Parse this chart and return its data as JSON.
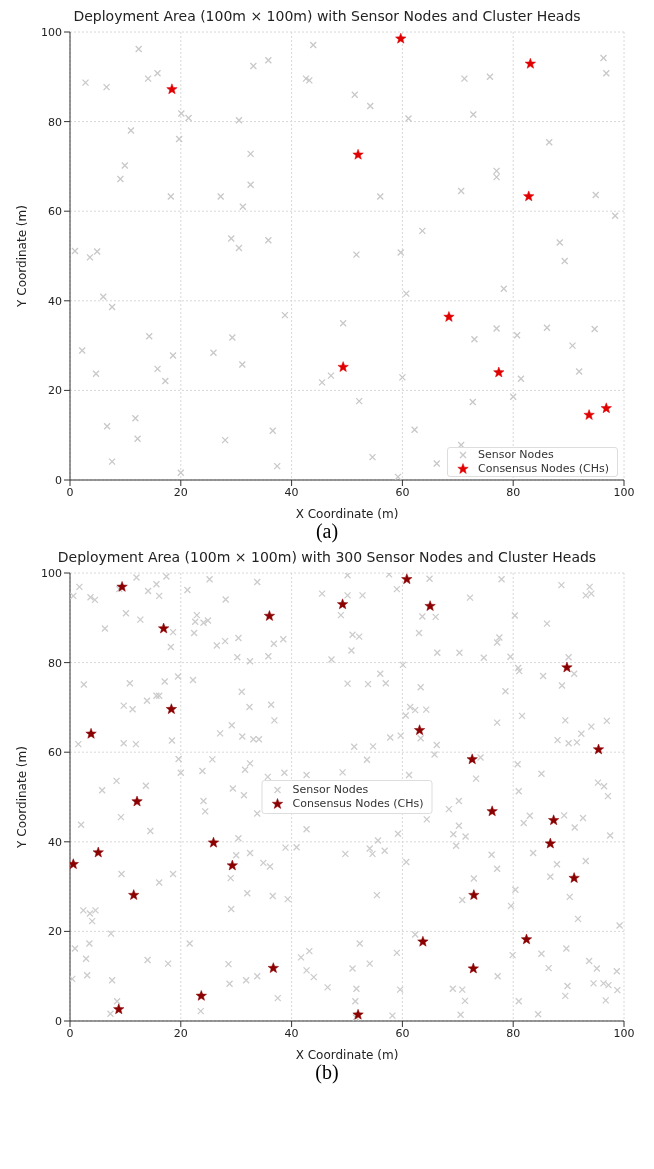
{
  "chart_data": [
    {
      "type": "scatter",
      "title": "Deployment Area (100m × 100m) with Sensor Nodes and Cluster Heads",
      "xlabel": "X Coordinate (m)",
      "ylabel": "Y Coordinate (m)",
      "annotations": [
        "(a)"
      ],
      "xlim": [
        0,
        100
      ],
      "ylim": [
        0,
        100
      ],
      "xticks": [
        0,
        20,
        40,
        60,
        80,
        100
      ],
      "yticks": [
        0,
        20,
        40,
        60,
        80,
        100
      ],
      "grid": true,
      "legend": "bottom right",
      "series": [
        {
          "name": "Sensor Nodes",
          "color": "#c8c8c8",
          "marker": "cross",
          "x": [
            12.4,
            2.8,
            6.6,
            14.1,
            15.8,
            20.1,
            21.4,
            11.0,
            19.7,
            9.9,
            9.1,
            18.2,
            30.5,
            32.6,
            32.6,
            27.2,
            31.2,
            33.1,
            35.8,
            43.9,
            42.6,
            43.2,
            51.4,
            0.9,
            3.6,
            4.9,
            29.1,
            30.5,
            35.8,
            51.7,
            6.0,
            7.6,
            38.8,
            49.3,
            14.3,
            29.3,
            2.2,
            18.6,
            25.9,
            31.1,
            4.7,
            15.8,
            17.2,
            47.1,
            45.5,
            52.2,
            11.8,
            6.7,
            12.2,
            28.0,
            36.6,
            7.6,
            37.4,
            20.0,
            54.2,
            61.1,
            71.2,
            75.8,
            72.8,
            96.3,
            96.8,
            86.5,
            77.0,
            77.0,
            70.6,
            56.0,
            94.9,
            98.4,
            63.6,
            59.7,
            88.4,
            89.3,
            60.7,
            78.3,
            77.0,
            73.0,
            80.7,
            86.1,
            94.7,
            90.7,
            91.9,
            81.4,
            60.0,
            72.7,
            80.0,
            62.2,
            54.6,
            70.6,
            66.2,
            59.2
          ],
          "values": [
            96.2,
            88.7,
            87.7,
            89.6,
            90.8,
            81.8,
            80.8,
            78.0,
            76.1,
            70.2,
            67.2,
            63.3,
            80.3,
            72.8,
            65.9,
            63.3,
            61.0,
            92.4,
            93.7,
            97.1,
            89.6,
            89.2,
            86.0,
            51.1,
            49.7,
            51.0,
            53.9,
            51.8,
            53.5,
            50.3,
            40.9,
            38.6,
            36.8,
            35.0,
            32.1,
            31.8,
            28.9,
            27.8,
            28.4,
            25.8,
            23.7,
            24.8,
            22.1,
            23.3,
            21.8,
            17.6,
            13.8,
            12.0,
            9.2,
            8.9,
            11.0,
            4.1,
            3.1,
            1.6,
            83.5,
            80.7,
            89.6,
            90.0,
            81.6,
            94.2,
            90.8,
            75.4,
            69.0,
            67.6,
            64.5,
            63.3,
            63.6,
            59.0,
            55.6,
            50.8,
            53.0,
            48.9,
            41.6,
            42.7,
            33.8,
            31.4,
            32.3,
            34.0,
            33.7,
            30.0,
            24.2,
            22.6,
            22.9,
            17.4,
            18.6,
            11.2,
            5.1,
            7.8,
            3.7,
            0.7
          ]
        },
        {
          "name": "Consensus Nodes (CHs)",
          "color": "#e00000",
          "marker": "star",
          "x": [
            18.4,
            52.0,
            49.3,
            59.7,
            83.1,
            82.8,
            68.4,
            77.4,
            93.7,
            96.8
          ],
          "values": [
            87.2,
            72.6,
            25.2,
            98.5,
            92.9,
            63.3,
            36.4,
            24.0,
            14.5,
            16.0
          ]
        }
      ]
    },
    {
      "type": "scatter",
      "title": "Deployment Area (100m × 100m) with 300 Sensor Nodes and Cluster Heads",
      "xlabel": "X Coordinate (m)",
      "ylabel": "Y Coordinate (m)",
      "annotations": [
        "(b)"
      ],
      "xlim": [
        0,
        100
      ],
      "ylim": [
        0,
        100
      ],
      "xticks": [
        0,
        20,
        40,
        60,
        80,
        100
      ],
      "yticks": [
        0,
        20,
        40,
        60,
        80,
        100
      ],
      "grid": true,
      "legend": "center",
      "series": [
        {
          "name": "Sensor Nodes",
          "color": "#cccccc",
          "marker": "cross",
          "x": [
            1.7,
            0.6,
            3.7,
            4.5,
            12.0,
            15.6,
            14.1,
            16.1,
            17.4,
            8.9,
            21.2,
            25.2,
            28.1,
            33.8,
            10.1,
            12.7,
            6.3,
            18.6,
            18.2,
            22.9,
            22.6,
            24.1,
            24.9,
            22.4,
            26.5,
            28.0,
            30.4,
            30.2,
            32.5,
            35.8,
            36.8,
            38.5,
            45.5,
            48.9,
            47.2,
            2.5,
            10.8,
            17.1,
            19.5,
            22.2,
            13.9,
            15.6,
            16.1,
            9.7,
            11.3,
            18.4,
            1.5,
            9.7,
            11.9,
            31.0,
            32.4,
            36.3,
            36.9,
            29.2,
            27.1,
            31.1,
            33.1,
            34.1,
            19.6,
            25.7,
            20.0,
            23.9,
            32.5,
            31.6,
            35.7,
            38.7,
            8.4,
            13.7,
            42.7,
            49.2,
            50.1,
            57.6,
            64.9,
            59.0,
            50.1,
            52.8,
            72.2,
            77.9,
            88.7,
            93.8,
            93.1,
            94.1,
            63.6,
            66.0,
            80.3,
            86.1,
            51.0,
            52.2,
            50.8,
            63.0,
            77.5,
            77.1,
            66.3,
            70.3,
            74.7,
            79.5,
            60.1,
            56.0,
            50.1,
            53.8,
            57.0,
            63.3,
            80.9,
            81.1,
            85.4,
            90.0,
            91.0,
            88.8,
            78.6,
            61.4,
            62.3,
            64.3,
            60.6,
            77.1,
            81.6,
            89.4,
            94.1,
            96.9,
            92.3,
            88.0,
            90.0,
            91.5,
            57.8,
            59.7,
            63.3,
            51.3,
            54.7,
            66.2,
            65.8,
            53.6,
            74.1,
            80.8,
            61.2,
            73.3,
            85.1,
            95.3,
            96.4,
            5.8,
            24.1,
            24.4,
            29.4,
            31.4,
            33.8,
            9.2,
            2.0,
            14.5,
            30.4,
            30.0,
            32.5,
            34.9,
            36.1,
            38.9,
            40.9,
            42.7,
            29.0,
            9.3,
            16.1,
            18.6,
            32.0,
            36.6,
            39.3,
            29.1,
            2.4,
            3.6,
            4.6,
            4.0,
            7.4,
            0.9,
            3.5,
            2.9,
            21.6,
            14.0,
            17.7,
            0.4,
            3.1,
            7.6,
            28.6,
            33.8,
            31.8,
            28.8,
            41.7,
            43.2,
            42.7,
            44.0,
            46.5,
            37.5,
            8.5,
            49.7,
            97.1,
            81.0,
            70.2,
            68.4,
            64.4,
            70.2,
            69.2,
            71.4,
            69.7,
            59.2,
            55.6,
            54.1,
            54.6,
            56.8,
            60.7,
            76.1,
            77.1,
            72.9,
            70.8,
            80.4,
            79.6,
            83.0,
            81.9,
            89.2,
            92.6,
            91.1,
            97.5,
            83.6,
            87.9,
            93.1,
            86.7,
            90.2,
            91.7,
            99.2,
            55.4,
            52.3,
            62.3,
            59.0,
            54.1,
            51.0,
            77.2,
            51.7,
            59.6,
            69.1,
            70.8,
            79.9,
            85.1,
            89.6,
            86.4,
            93.7,
            95.1,
            98.7,
            89.8,
            94.5,
            96.3,
            97.2,
            98.8,
            89.4,
            51.5,
            71.3,
            81.0,
            96.7,
            7.3,
            23.6,
            51.6,
            58.2,
            84.5,
            70.5
          ],
          "values": [
            96.9,
            94.9,
            94.6,
            94.0,
            99.0,
            97.5,
            96.0,
            94.9,
            99.2,
            96.4,
            96.2,
            98.6,
            94.1,
            98.0,
            91.0,
            89.6,
            87.6,
            86.8,
            83.5,
            90.6,
            89.1,
            88.9,
            89.4,
            86.6,
            83.8,
            84.8,
            85.5,
            81.2,
            80.3,
            81.4,
            84.2,
            85.2,
            95.4,
            90.6,
            80.7,
            75.1,
            75.4,
            75.8,
            76.9,
            76.1,
            71.5,
            72.6,
            72.6,
            70.4,
            69.6,
            62.6,
            61.8,
            62.0,
            61.8,
            73.5,
            70.1,
            70.6,
            67.1,
            66.0,
            64.2,
            63.5,
            62.9,
            62.9,
            58.5,
            58.4,
            55.4,
            55.8,
            57.5,
            56.1,
            54.5,
            55.4,
            53.6,
            52.5,
            54.9,
            55.5,
            99.5,
            99.7,
            98.7,
            96.4,
            95.0,
            95.0,
            94.5,
            98.6,
            97.3,
            96.9,
            95.0,
            95.4,
            90.3,
            90.2,
            90.5,
            88.7,
            86.2,
            85.8,
            82.7,
            86.6,
            85.6,
            84.5,
            82.2,
            82.2,
            81.1,
            81.3,
            79.5,
            77.5,
            75.3,
            75.2,
            75.4,
            74.5,
            78.8,
            78.1,
            77.0,
            81.2,
            77.5,
            74.9,
            73.6,
            70.1,
            69.4,
            69.5,
            68.2,
            66.6,
            68.1,
            67.1,
            65.7,
            67.0,
            64.1,
            62.7,
            62.0,
            62.2,
            63.3,
            63.7,
            63.1,
            61.2,
            61.3,
            61.6,
            59.5,
            58.3,
            58.8,
            57.3,
            54.9,
            54.1,
            55.2,
            53.2,
            52.4,
            51.5,
            49.1,
            46.8,
            51.9,
            50.4,
            46.3,
            45.5,
            43.8,
            42.4,
            40.8,
            37.0,
            37.5,
            35.3,
            34.5,
            38.7,
            38.8,
            42.8,
            31.9,
            32.8,
            30.9,
            32.8,
            28.5,
            27.9,
            27.2,
            25.0,
            24.7,
            24.0,
            24.7,
            22.3,
            19.5,
            16.2,
            17.3,
            13.9,
            17.3,
            13.6,
            12.8,
            9.4,
            10.2,
            9.1,
            12.7,
            10.0,
            9.1,
            8.3,
            14.2,
            15.6,
            11.3,
            9.8,
            7.5,
            5.1,
            4.4,
            37.3,
            50.2,
            51.3,
            49.1,
            47.3,
            45.0,
            43.6,
            41.7,
            41.2,
            39.1,
            41.8,
            40.3,
            38.5,
            37.3,
            38.0,
            35.5,
            37.1,
            34.0,
            31.8,
            27.0,
            29.3,
            25.7,
            45.8,
            44.2,
            45.9,
            45.3,
            43.2,
            41.4,
            37.5,
            35.0,
            35.7,
            32.2,
            27.7,
            22.8,
            21.3,
            28.1,
            17.3,
            19.3,
            15.2,
            12.8,
            11.7,
            10.0,
            7.2,
            7.0,
            7.2,
            7.0,
            14.7,
            15.0,
            16.2,
            11.8,
            13.4,
            11.7,
            11.1,
            7.8,
            8.4,
            8.4,
            8.0,
            6.9,
            5.6,
            4.4,
            4.5,
            4.4,
            4.6,
            1.6,
            2.2,
            0.8,
            1.2,
            1.5,
            1.4
          ]
        },
        {
          "name": "Consensus Nodes (CHs)",
          "color": "#8b0000",
          "marker": "star",
          "x": [
            9.4,
            16.9,
            36.0,
            49.2,
            18.3,
            3.8,
            60.8,
            65.0,
            89.7,
            63.1,
            72.6,
            95.4,
            12.1,
            5.1,
            0.6,
            25.9,
            29.3,
            11.5,
            36.7,
            23.7,
            76.2,
            87.3,
            86.7,
            91.0,
            72.9,
            63.7,
            82.4,
            72.8,
            8.8,
            52.0
          ],
          "values": [
            96.9,
            87.6,
            90.4,
            93.0,
            69.6,
            64.1,
            98.6,
            92.6,
            78.9,
            64.9,
            58.4,
            60.6,
            49.0,
            37.6,
            35.0,
            39.8,
            34.7,
            28.1,
            11.8,
            5.6,
            46.8,
            44.8,
            39.6,
            31.9,
            28.1,
            17.7,
            18.2,
            11.7,
            2.6,
            1.4
          ]
        }
      ]
    }
  ]
}
